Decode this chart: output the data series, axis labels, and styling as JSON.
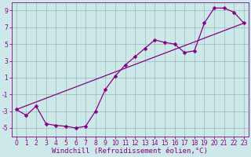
{
  "xlabel": "Windchill (Refroidissement éolien,°C)",
  "bg_color": "#cce8e8",
  "grid_color": "#99bbbb",
  "line_color": "#880088",
  "xlim": [
    -0.5,
    23.5
  ],
  "ylim": [
    -6,
    10
  ],
  "xticks": [
    0,
    1,
    2,
    3,
    4,
    5,
    6,
    7,
    8,
    9,
    10,
    11,
    12,
    13,
    14,
    15,
    16,
    17,
    18,
    19,
    20,
    21,
    22,
    23
  ],
  "yticks": [
    -5,
    -3,
    -1,
    1,
    3,
    5,
    7,
    9
  ],
  "series1": [
    [
      0,
      -2.8
    ],
    [
      1,
      -3.5
    ],
    [
      2,
      -2.4
    ],
    [
      3,
      -4.5
    ],
    [
      4,
      -4.7
    ],
    [
      5,
      -4.8
    ],
    [
      6,
      -5.0
    ],
    [
      7,
      -4.8
    ],
    [
      8,
      -3.0
    ],
    [
      9,
      -0.4
    ],
    [
      10,
      1.2
    ],
    [
      11,
      2.5
    ],
    [
      12,
      3.5
    ],
    [
      13,
      4.5
    ],
    [
      14,
      5.5
    ],
    [
      15,
      5.2
    ],
    [
      16,
      5.0
    ],
    [
      17,
      4.0
    ],
    [
      18,
      4.2
    ],
    [
      19,
      7.5
    ],
    [
      20,
      9.3
    ],
    [
      21,
      9.3
    ],
    [
      22,
      8.8
    ],
    [
      23,
      7.5
    ]
  ],
  "series2": [
    [
      0,
      -2.8
    ],
    [
      23,
      7.5
    ]
  ],
  "tick_fontsize": 5.5,
  "xlabel_fontsize": 6.5,
  "marker_size": 2.5,
  "line_width": 0.9
}
